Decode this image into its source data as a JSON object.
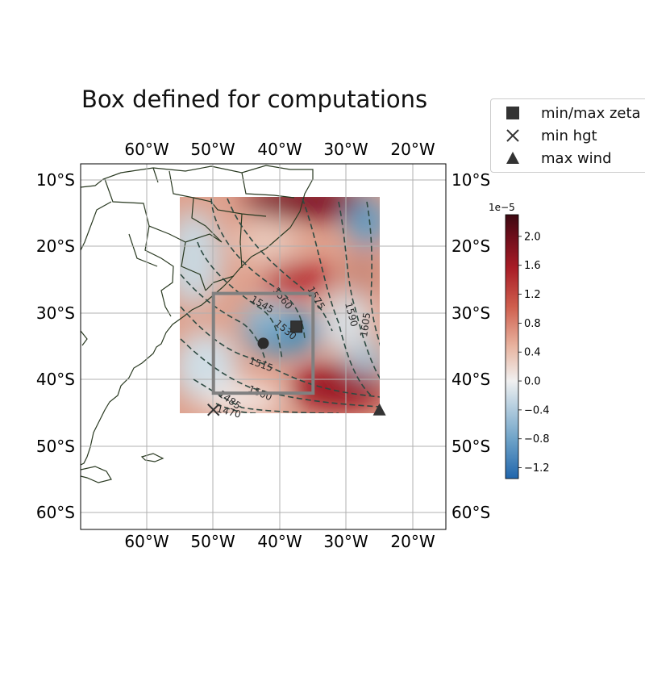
{
  "title": "Box defined for computations",
  "map": {
    "lon_range": [
      -70,
      -15
    ],
    "lat_range": [
      -63,
      -8
    ],
    "lon_ticks": [
      -60,
      -50,
      -40,
      -30,
      -20
    ],
    "lat_ticks": [
      -10,
      -20,
      -30,
      -40,
      -50,
      -60
    ],
    "lon_tick_labels": [
      "60°W",
      "50°W",
      "40°W",
      "30°W",
      "20°W"
    ],
    "lat_tick_labels": [
      "10°S",
      "20°S",
      "30°S",
      "40°S",
      "50°S",
      "60°S"
    ],
    "grid": true,
    "field_extent": {
      "lon": [
        -55,
        -25
      ],
      "lat": [
        -45,
        -13
      ]
    },
    "computation_box": {
      "lon": [
        -50,
        -35
      ],
      "lat": [
        -42.5,
        -27.5
      ]
    },
    "contour_labels": [
      "1560",
      "1575",
      "1545",
      "1590",
      "1530",
      "1605",
      "1515",
      "1500",
      "1485",
      "1470"
    ]
  },
  "markers": {
    "center": {
      "lon": -42.5,
      "lat": -35
    },
    "min_max_zeta": {
      "lon": -37.5,
      "lat": -32.5
    },
    "min_hgt": {
      "lon": -50,
      "lat": -45
    },
    "max_wind": {
      "lon": -25,
      "lat": -45
    }
  },
  "legend": {
    "items": [
      {
        "label": "min/max zeta",
        "icon": "square"
      },
      {
        "label": "min hgt",
        "icon": "x"
      },
      {
        "label": "max wind",
        "icon": "triangle"
      }
    ]
  },
  "colorbar": {
    "exponent": "1e−5",
    "range": [
      -1.35,
      2.3
    ],
    "ticks": [
      2.0,
      1.6,
      1.2,
      0.8,
      0.4,
      0.0,
      -0.4,
      -0.8,
      -1.2
    ],
    "tick_labels": [
      "2.0",
      "1.6",
      "1.2",
      "0.8",
      "0.4",
      "0.0",
      "−0.4",
      "−0.8",
      "−1.2"
    ],
    "colormap": "blue-white-red",
    "colors": {
      "low": "#2166ac",
      "mid": "#f0f0f0",
      "high": "#3d0a12"
    }
  }
}
